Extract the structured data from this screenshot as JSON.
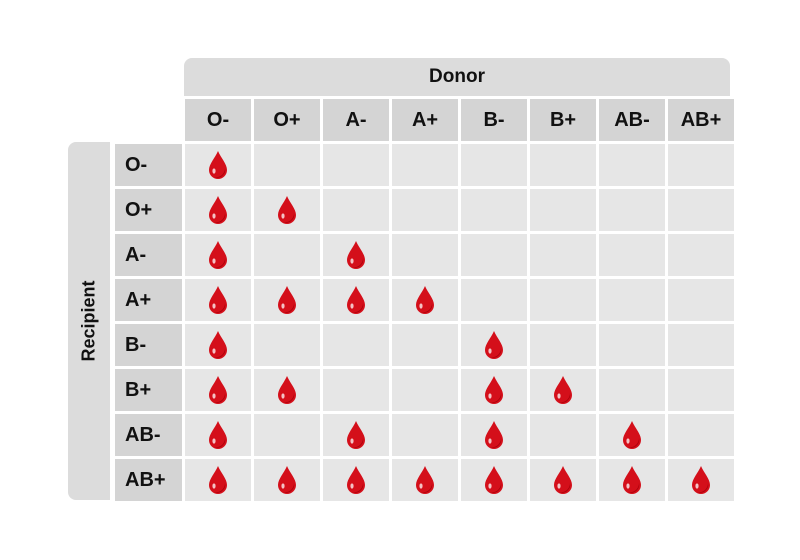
{
  "header": {
    "donor_label": "Donor"
  },
  "side": {
    "recipient_label": "Recipient"
  },
  "colors": {
    "drop": "#d40f1a",
    "drop_dark": "#a8000a",
    "cell": "#e6e6e6",
    "header_cell": "#d4d4d4",
    "banner": "#dcdcdc"
  },
  "donors": [
    "O-",
    "O+",
    "A-",
    "A+",
    "B-",
    "B+",
    "AB-",
    "AB+"
  ],
  "recipients": [
    {
      "label": "O-",
      "compatible": [
        1,
        0,
        0,
        0,
        0,
        0,
        0,
        0
      ]
    },
    {
      "label": "O+",
      "compatible": [
        1,
        1,
        0,
        0,
        0,
        0,
        0,
        0
      ]
    },
    {
      "label": "A-",
      "compatible": [
        1,
        0,
        1,
        0,
        0,
        0,
        0,
        0
      ]
    },
    {
      "label": "A+",
      "compatible": [
        1,
        1,
        1,
        1,
        0,
        0,
        0,
        0
      ]
    },
    {
      "label": "B-",
      "compatible": [
        1,
        0,
        0,
        0,
        1,
        0,
        0,
        0
      ]
    },
    {
      "label": "B+",
      "compatible": [
        1,
        1,
        0,
        0,
        1,
        1,
        0,
        0
      ]
    },
    {
      "label": "AB-",
      "compatible": [
        1,
        0,
        1,
        0,
        1,
        0,
        1,
        0
      ]
    },
    {
      "label": "AB+",
      "compatible": [
        1,
        1,
        1,
        1,
        1,
        1,
        1,
        1
      ]
    }
  ],
  "icon": "blood-drop-icon"
}
